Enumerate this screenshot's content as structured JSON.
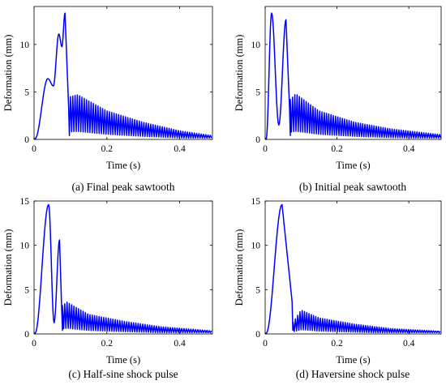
{
  "colors": {
    "series": "#0000ff",
    "axes": "#000000",
    "background": "#ffffff"
  },
  "chart_data": [
    {
      "type": "line",
      "caption": "(a)  Final peak sawtooth",
      "xlabel": "Time (s)",
      "ylabel": "Deformation (mm)",
      "xlim": [
        0,
        0.49
      ],
      "ylim": [
        0,
        14
      ],
      "xticks": [
        0,
        0.2,
        0.4
      ],
      "xtick_labels": [
        "0",
        "0.2",
        "0.4"
      ],
      "yticks": [
        0,
        5,
        10
      ],
      "ytick_labels": [
        "0",
        "5",
        "10"
      ],
      "grid": false,
      "shape": {
        "front_peaks": [
          [
            0.038,
            6.4
          ],
          [
            0.068,
            11.1
          ],
          [
            0.085,
            13.3
          ]
        ],
        "drop_time": 0.095,
        "tail_start_time": 0.1,
        "osc_period": 0.0063,
        "tail_envelope": [
          [
            0.1,
            4.5
          ],
          [
            0.12,
            4.7
          ],
          [
            0.2,
            3.0
          ],
          [
            0.3,
            1.8
          ],
          [
            0.4,
            0.9
          ],
          [
            0.49,
            0.4
          ]
        ]
      }
    },
    {
      "type": "line",
      "caption": "(b)  Initial peak sawtooth",
      "xlabel": "Time (s)",
      "ylabel": "Deformation (mm)",
      "xlim": [
        0,
        0.49
      ],
      "ylim": [
        0,
        14
      ],
      "xticks": [
        0,
        0.2,
        0.4
      ],
      "xtick_labels": [
        "0",
        "0.2",
        "0.4"
      ],
      "yticks": [
        0,
        5,
        10
      ],
      "ytick_labels": [
        "0",
        "5",
        "10"
      ],
      "grid": false,
      "shape": {
        "front_peaks": [
          [
            0.018,
            13.3
          ],
          [
            0.058,
            12.6
          ]
        ],
        "drop_time": 0.068,
        "tail_start_time": 0.07,
        "osc_period": 0.0063,
        "tail_envelope": [
          [
            0.07,
            4.2
          ],
          [
            0.085,
            4.8
          ],
          [
            0.15,
            3.0
          ],
          [
            0.25,
            1.8
          ],
          [
            0.35,
            1.1
          ],
          [
            0.49,
            0.5
          ]
        ]
      }
    },
    {
      "type": "line",
      "caption": "(c) Half-sine shock pulse",
      "xlabel": "Time (s)",
      "ylabel": "Deformation (mm)",
      "xlim": [
        0,
        0.49
      ],
      "ylim": [
        0,
        15
      ],
      "xticks": [
        0,
        0.2,
        0.4
      ],
      "xtick_labels": [
        "0",
        "0.2",
        "0.4"
      ],
      "yticks": [
        0,
        5,
        10,
        15
      ],
      "ytick_labels": [
        "0",
        "5",
        "10",
        "15"
      ],
      "grid": false,
      "shape": {
        "front_peaks": [
          [
            0.04,
            14.6
          ],
          [
            0.07,
            10.6
          ]
        ],
        "drop_time": 0.076,
        "tail_start_time": 0.078,
        "osc_period": 0.0063,
        "tail_envelope": [
          [
            0.078,
            3.2
          ],
          [
            0.09,
            3.6
          ],
          [
            0.15,
            2.2
          ],
          [
            0.25,
            1.4
          ],
          [
            0.35,
            0.8
          ],
          [
            0.49,
            0.35
          ]
        ]
      }
    },
    {
      "type": "line",
      "caption": "(d) Haversine shock pulse",
      "xlabel": "Time (s)",
      "ylabel": "Deformation (mm)",
      "xlim": [
        0,
        0.49
      ],
      "ylim": [
        0,
        15
      ],
      "xticks": [
        0,
        0.2,
        0.4
      ],
      "xtick_labels": [
        "0",
        "0.2",
        "0.4"
      ],
      "yticks": [
        0,
        5,
        10,
        15
      ],
      "ytick_labels": [
        "0",
        "5",
        "10",
        "15"
      ],
      "grid": false,
      "shape": {
        "front_peaks": [
          [
            0.047,
            14.6
          ]
        ],
        "drop_time": 0.075,
        "tail_start_time": 0.078,
        "osc_period": 0.0063,
        "tail_envelope": [
          [
            0.078,
            1.3
          ],
          [
            0.1,
            2.7
          ],
          [
            0.15,
            1.8
          ],
          [
            0.25,
            1.1
          ],
          [
            0.35,
            0.6
          ],
          [
            0.49,
            0.3
          ]
        ]
      }
    }
  ]
}
